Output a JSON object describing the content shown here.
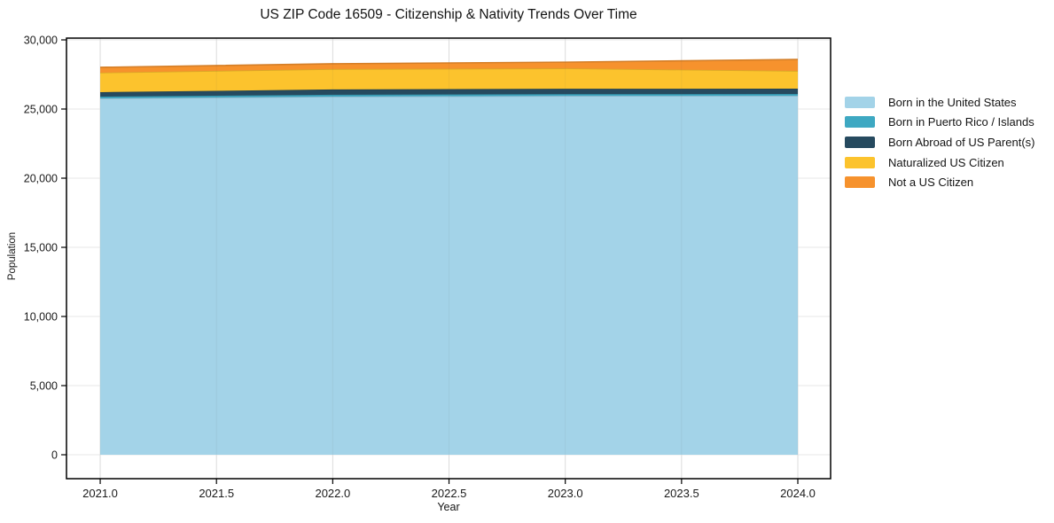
{
  "chart_data": {
    "type": "area",
    "stacked": true,
    "title": "US ZIP Code 16509 - Citizenship & Nativity Trends Over Time",
    "xlabel": "Year",
    "ylabel": "Population",
    "grid": true,
    "legend_position": "right-outside",
    "x": [
      2021,
      2022,
      2023,
      2024
    ],
    "series": [
      {
        "name": "Born in the United States",
        "color": "#a3d3e8",
        "values": [
          25770,
          25900,
          25950,
          25960
        ]
      },
      {
        "name": "Born in Puerto Rico / Islands",
        "color": "#3ea8c2",
        "values": [
          130,
          130,
          130,
          130
        ]
      },
      {
        "name": "Born Abroad of US Parent(s)",
        "color": "#264a5f",
        "values": [
          320,
          385,
          385,
          385
        ]
      },
      {
        "name": "Naturalized US Citizen",
        "color": "#fcc32d",
        "values": [
          1410,
          1475,
          1475,
          1280
        ]
      },
      {
        "name": "Not a US Citizen",
        "color": "#f6922d",
        "values": [
          385,
          385,
          450,
          830
        ]
      }
    ],
    "xticks": [
      2021.0,
      2021.5,
      2022.0,
      2022.5,
      2023.0,
      2023.5,
      2024.0
    ],
    "yticks": [
      0,
      5000,
      10000,
      15000,
      20000,
      25000,
      30000
    ],
    "xlim": [
      2020.855,
      2024.141
    ],
    "ylim": [
      -1730,
      30128
    ],
    "colors": {
      "axis": "#000000",
      "gridline": "#e7e7e7",
      "tick_text": "#1a1a1a"
    }
  }
}
